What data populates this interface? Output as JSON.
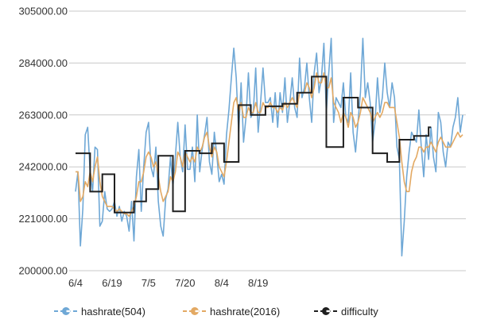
{
  "chart_data": {
    "type": "line",
    "x_tick_labels": [
      "6/4",
      "6/19",
      "7/5",
      "7/20",
      "8/4",
      "8/19"
    ],
    "y_tick_labels": [
      "200000.00",
      "221000.00",
      "242000.00",
      "263000.00",
      "284000.00",
      "305000.00"
    ],
    "ylim": [
      200000,
      305000
    ],
    "grid": "horizontal",
    "legend_position": "bottom",
    "series": [
      {
        "name": "hashrate(504)",
        "color": "#6fa8d6",
        "values": [
          232000,
          240000,
          210000,
          225000,
          255000,
          258000,
          240000,
          232000,
          250000,
          249000,
          218000,
          220000,
          232000,
          225000,
          224000,
          225000,
          228000,
          222000,
          226000,
          220000,
          224000,
          222000,
          216000,
          228000,
          212000,
          238000,
          249000,
          224000,
          242000,
          256000,
          260000,
          242000,
          238000,
          250000,
          228000,
          218000,
          214000,
          229000,
          233000,
          246000,
          234000,
          246000,
          260000,
          246000,
          240000,
          259000,
          241000,
          241000,
          250000,
          236000,
          263000,
          240000,
          249000,
          255000,
          262000,
          244000,
          239000,
          256000,
          247000,
          236000,
          239000,
          235000,
          255000,
          265000,
          278000,
          290000,
          278000,
          256000,
          276000,
          252000,
          262000,
          280000,
          262000,
          264000,
          282000,
          256000,
          268000,
          282000,
          268000,
          268000,
          270000,
          260000,
          272000,
          258000,
          272000,
          264000,
          278000,
          260000,
          268000,
          278000,
          266000,
          262000,
          286000,
          270000,
          274000,
          284000,
          270000,
          260000,
          280000,
          288000,
          272000,
          278000,
          292000,
          264000,
          280000,
          294000,
          260000,
          270000,
          268000,
          266000,
          276000,
          262000,
          260000,
          280000,
          256000,
          248000,
          260000,
          272000,
          294000,
          270000,
          276000,
          268000,
          252000,
          260000,
          278000,
          264000,
          270000,
          284000,
          272000,
          266000,
          276000,
          270000,
          250000,
          245000,
          206000,
          220000,
          238000,
          248000,
          256000,
          254000,
          252000,
          265000,
          250000,
          238000,
          255000,
          245000,
          258000,
          246000,
          240000,
          264000,
          260000,
          248000,
          242000,
          252000,
          250000,
          258000,
          262000,
          270000,
          256000,
          263000
        ]
      },
      {
        "name": "hashrate(2016)",
        "color": "#e3a963",
        "values": [
          240000,
          240000,
          228000,
          230000,
          236000,
          234000,
          240000,
          236000,
          242000,
          246000,
          236000,
          230000,
          228000,
          226000,
          226000,
          226000,
          225000,
          224000,
          225000,
          224000,
          223000,
          223000,
          222000,
          224000,
          226000,
          230000,
          236000,
          236000,
          240000,
          246000,
          248000,
          246000,
          242000,
          244000,
          238000,
          232000,
          228000,
          230000,
          232000,
          238000,
          236000,
          240000,
          248000,
          246000,
          242000,
          248000,
          246000,
          244000,
          246000,
          244000,
          250000,
          248000,
          250000,
          254000,
          256000,
          250000,
          246000,
          250000,
          248000,
          242000,
          240000,
          238000,
          244000,
          252000,
          260000,
          268000,
          270000,
          264000,
          268000,
          262000,
          262000,
          266000,
          264000,
          264000,
          268000,
          264000,
          264000,
          268000,
          266000,
          266000,
          268000,
          266000,
          266000,
          264000,
          266000,
          265000,
          268000,
          266000,
          268000,
          270000,
          268000,
          266000,
          272000,
          272000,
          272000,
          276000,
          274000,
          270000,
          274000,
          280000,
          276000,
          276000,
          280000,
          274000,
          274000,
          278000,
          268000,
          266000,
          264000,
          260000,
          264000,
          262000,
          258000,
          264000,
          262000,
          258000,
          260000,
          264000,
          270000,
          268000,
          266000,
          264000,
          260000,
          262000,
          264000,
          262000,
          264000,
          268000,
          268000,
          266000,
          266000,
          266000,
          260000,
          254000,
          244000,
          236000,
          232000,
          232000,
          240000,
          244000,
          246000,
          250000,
          250000,
          248000,
          250000,
          250000,
          252000,
          250000,
          248000,
          252000,
          254000,
          252000,
          250000,
          250000,
          250000,
          252000,
          254000,
          256000,
          254000,
          255000
        ]
      },
      {
        "name": "difficulty",
        "color": "#1f1f1f",
        "steps": [
          {
            "from": 0,
            "to": 6,
            "value": 247500
          },
          {
            "from": 6,
            "to": 11,
            "value": 232000
          },
          {
            "from": 11,
            "to": 16,
            "value": 239000
          },
          {
            "from": 16,
            "to": 24,
            "value": 223500
          },
          {
            "from": 24,
            "to": 29,
            "value": 228000
          },
          {
            "from": 29,
            "to": 34,
            "value": 233000
          },
          {
            "from": 34,
            "to": 40,
            "value": 246500
          },
          {
            "from": 40,
            "to": 45,
            "value": 224000
          },
          {
            "from": 45,
            "to": 51,
            "value": 248500
          },
          {
            "from": 51,
            "to": 56,
            "value": 247500
          },
          {
            "from": 56,
            "to": 61,
            "value": 251500
          },
          {
            "from": 61,
            "to": 67,
            "value": 244000
          },
          {
            "from": 67,
            "to": 72,
            "value": 267000
          },
          {
            "from": 72,
            "to": 78,
            "value": 263000
          },
          {
            "from": 78,
            "to": 85,
            "value": 266500
          },
          {
            "from": 85,
            "to": 91,
            "value": 267500
          },
          {
            "from": 91,
            "to": 97,
            "value": 272000
          },
          {
            "from": 97,
            "to": 103,
            "value": 278500
          },
          {
            "from": 103,
            "to": 110,
            "value": 250000
          },
          {
            "from": 110,
            "to": 116,
            "value": 270000
          },
          {
            "from": 116,
            "to": 122,
            "value": 266000
          },
          {
            "from": 122,
            "to": 128,
            "value": 247500
          },
          {
            "from": 128,
            "to": 133,
            "value": 244000
          },
          {
            "from": 133,
            "to": 139,
            "value": 253000
          },
          {
            "from": 139,
            "to": 145,
            "value": 254500
          },
          {
            "from": 145,
            "to": 146,
            "value": 258000
          }
        ]
      }
    ]
  }
}
